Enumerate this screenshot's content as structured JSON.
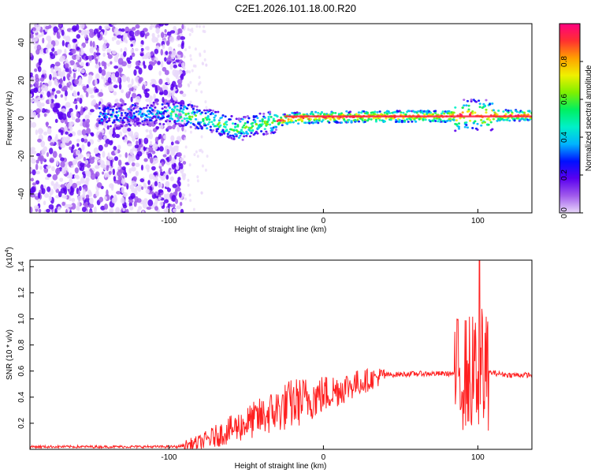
{
  "title": "C2E1.2026.101.18.00.R20",
  "chart_data": [
    {
      "type": "heatmap",
      "title": "C2E1.2026.101.18.00.R20",
      "xlabel": "Height of straight line (km)",
      "ylabel": "Frequency (Hz)",
      "xlim": [
        -190,
        135
      ],
      "ylim": [
        -50,
        50
      ],
      "xticks": [
        -100,
        0,
        100
      ],
      "yticks": [
        -40,
        -20,
        0,
        20,
        40
      ],
      "colorbar": {
        "label": "Normalized spectral amplitude",
        "range": [
          0,
          1
        ],
        "ticks": [
          "0.0",
          "0.2",
          "0.4",
          "0.6",
          "0.8"
        ],
        "colors": [
          "#e9d8fa",
          "#a05aec",
          "#5a00f0",
          "#0010ff",
          "#00b4ff",
          "#00f0c8",
          "#00f060",
          "#80f000",
          "#f0f000",
          "#ffa000",
          "#ff3030",
          "#ff0080"
        ]
      },
      "ridge": [
        {
          "x": -140,
          "y": 1
        },
        {
          "x": -100,
          "y": 3
        },
        {
          "x": -85,
          "y": 1
        },
        {
          "x": -70,
          "y": -2
        },
        {
          "x": -55,
          "y": -6
        },
        {
          "x": -40,
          "y": -3
        },
        {
          "x": -20,
          "y": 0
        },
        {
          "x": 0,
          "y": 0.5
        },
        {
          "x": 40,
          "y": 1
        },
        {
          "x": 80,
          "y": 1
        },
        {
          "x": 95,
          "y": 2
        },
        {
          "x": 110,
          "y": 1.5
        },
        {
          "x": 135,
          "y": 1.5
        }
      ]
    },
    {
      "type": "line",
      "xlabel": "Height of straight line (km)",
      "ylabel": "SNR (10 * v/v)",
      "scale_label": "(x10",
      "scale_exp": "4",
      "scale_close": ")",
      "xlim": [
        -190,
        135
      ],
      "ylim": [
        0,
        1.45
      ],
      "xticks": [
        -100,
        0,
        100
      ],
      "yticks": [
        "0.2",
        "0.4",
        "0.6",
        "0.8",
        "1.0",
        "1.2",
        "1.4"
      ],
      "series_color": "#ff2020",
      "envelope": [
        {
          "x": -190,
          "y": 0.02
        },
        {
          "x": -95,
          "y": 0.02
        },
        {
          "x": -80,
          "y": 0.05
        },
        {
          "x": -60,
          "y": 0.15
        },
        {
          "x": -40,
          "y": 0.25
        },
        {
          "x": -20,
          "y": 0.35
        },
        {
          "x": 0,
          "y": 0.42
        },
        {
          "x": 20,
          "y": 0.5
        },
        {
          "x": 40,
          "y": 0.57
        },
        {
          "x": 60,
          "y": 0.58
        },
        {
          "x": 85,
          "y": 0.58
        },
        {
          "x": 100,
          "y": 0.6
        },
        {
          "x": 120,
          "y": 0.57
        },
        {
          "x": 135,
          "y": 0.57
        }
      ],
      "peak": {
        "x": 101,
        "y": 1.45
      }
    }
  ]
}
